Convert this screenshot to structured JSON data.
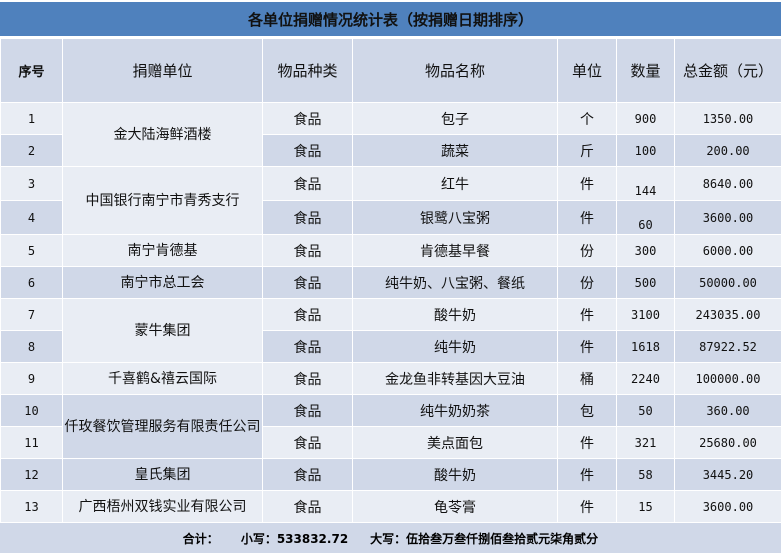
{
  "title": "各单位捐赠情况统计表（按捐赠日期排序）",
  "headers": [
    "序号",
    "捐赠单位",
    "物品种类",
    "物品名称",
    "单位",
    "数量",
    "总金额（元）"
  ],
  "groups": [
    {
      "donor": "金大陆海鲜酒楼",
      "rows": [
        {
          "seq": "1",
          "category": "食品",
          "item": "包子",
          "unit": "个",
          "qty": "900",
          "amount": "1350.00"
        },
        {
          "seq": "2",
          "category": "食品",
          "item": "蔬菜",
          "unit": "斤",
          "qty": "100",
          "amount": "200.00"
        }
      ]
    },
    {
      "donor": "中国银行南宁市青秀支行",
      "rows": [
        {
          "seq": "3",
          "category": "食品",
          "item": "红牛",
          "unit": "件",
          "qty": "144",
          "amount": "8640.00"
        },
        {
          "seq": "4",
          "category": "食品",
          "item": "银鹭八宝粥",
          "unit": "件",
          "qty": "60",
          "amount": "3600.00"
        }
      ]
    },
    {
      "donor": "南宁肯德基",
      "rows": [
        {
          "seq": "5",
          "category": "食品",
          "item": "肯德基早餐",
          "unit": "份",
          "qty": "300",
          "amount": "6000.00"
        }
      ]
    },
    {
      "donor": "南宁市总工会",
      "rows": [
        {
          "seq": "6",
          "category": "食品",
          "item": "纯牛奶、八宝粥、餐纸",
          "unit": "份",
          "qty": "500",
          "amount": "50000.00"
        }
      ]
    },
    {
      "donor": "蒙牛集团",
      "rows": [
        {
          "seq": "7",
          "category": "食品",
          "item": "酸牛奶",
          "unit": "件",
          "qty": "3100",
          "amount": "243035.00"
        },
        {
          "seq": "8",
          "category": "食品",
          "item": "纯牛奶",
          "unit": "件",
          "qty": "1618",
          "amount": "87922.52"
        }
      ]
    },
    {
      "donor": "千喜鹤&禧云国际",
      "rows": [
        {
          "seq": "9",
          "category": "食品",
          "item": "金龙鱼非转基因大豆油",
          "unit": "桶",
          "qty": "2240",
          "amount": "100000.00"
        }
      ]
    },
    {
      "donor": "仟玫餐饮管理服务有限责任公司",
      "rows": [
        {
          "seq": "10",
          "category": "食品",
          "item": "纯牛奶奶茶",
          "unit": "包",
          "qty": "50",
          "amount": "360.00"
        },
        {
          "seq": "11",
          "category": "食品",
          "item": "美点面包",
          "unit": "件",
          "qty": "321",
          "amount": "25680.00"
        }
      ]
    },
    {
      "donor": "皇氏集团",
      "rows": [
        {
          "seq": "12",
          "category": "食品",
          "item": "酸牛奶",
          "unit": "件",
          "qty": "58",
          "amount": "3445.20"
        }
      ]
    },
    {
      "donor": "广西梧州双钱实业有限公司",
      "rows": [
        {
          "seq": "13",
          "category": "食品",
          "item": "龟苓膏",
          "unit": "件",
          "qty": "15",
          "amount": "3600.00"
        }
      ]
    }
  ],
  "footer": {
    "total_label": "合计：",
    "small": "小写：533832.72",
    "big": "大写：伍拾叁万叁仟捌佰叁拾贰元柒角贰分"
  },
  "colors": {
    "title_bg": "#4f81bd",
    "row_dark": "#d0d8e8",
    "row_light": "#e9edf4"
  }
}
